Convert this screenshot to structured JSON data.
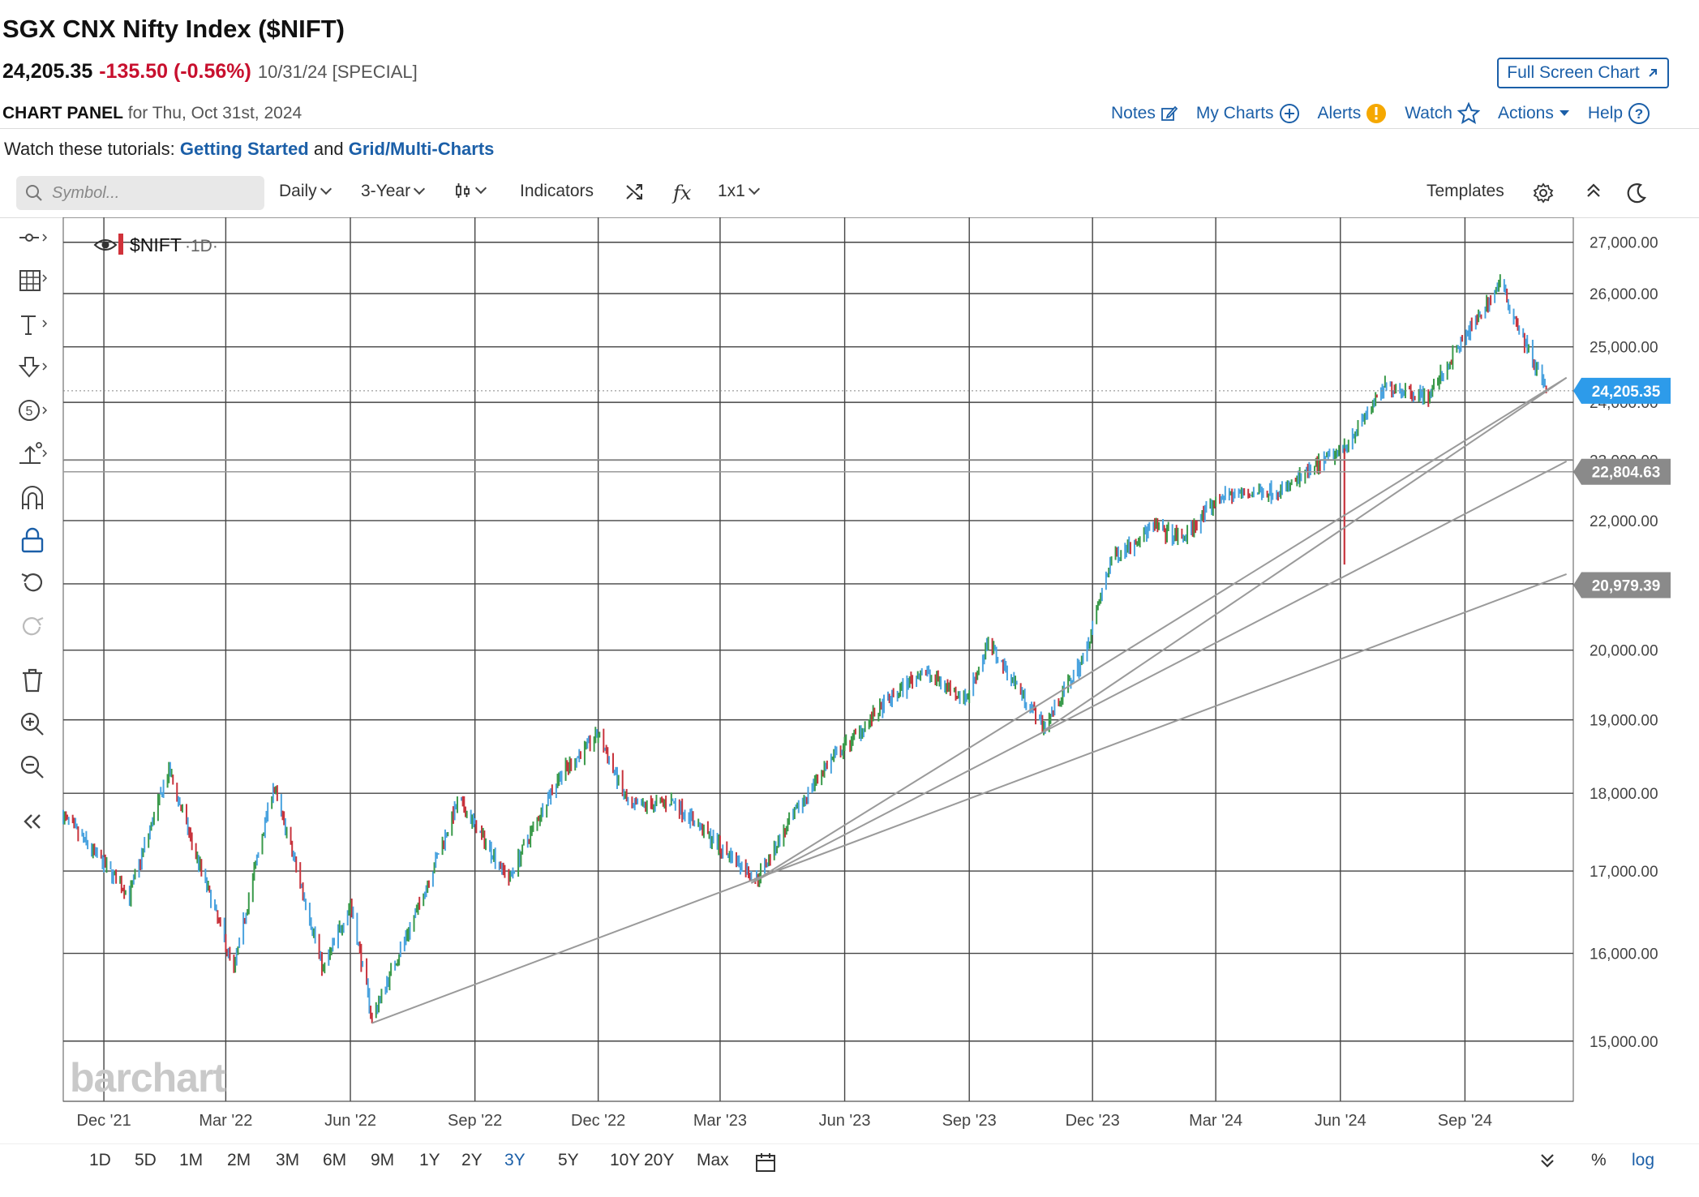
{
  "header": {
    "title": "SGX CNX Nifty Index ($NIFT)",
    "last": "24,205.35",
    "change": "-135.50 (-0.56%)",
    "date": "10/31/24 [SPECIAL]",
    "full_screen": "Full Screen Chart"
  },
  "panel": {
    "label": "CHART PANEL",
    "for_text": "for Thu, Oct 31st, 2024",
    "actions": [
      "Notes",
      "My Charts",
      "Alerts",
      "Watch",
      "Actions",
      "Help"
    ]
  },
  "tutorials": {
    "prefix": "Watch these tutorials:",
    "link1": "Getting Started",
    "and": "and",
    "link2": "Grid/Multi-Charts"
  },
  "toolbar": {
    "symbol_placeholder": "Symbol...",
    "interval": "Daily",
    "range": "3-Year",
    "indicators": "Indicators",
    "fx": "fx",
    "grid": "1x1",
    "templates": "Templates"
  },
  "legend": {
    "symbol": "$NIFT",
    "interval": "·1D·"
  },
  "watermark": "barchart",
  "chart_data": {
    "type": "ohlc",
    "symbol": "$NIFT",
    "x_tick_labels": [
      "Dec '21",
      "Mar '22",
      "Jun '22",
      "Sep '22",
      "Dec '22",
      "Mar '23",
      "Jun '23",
      "Sep '23",
      "Dec '23",
      "Mar '24",
      "Jun '24",
      "Sep '24"
    ],
    "y_tick_labels": [
      "15,000.00",
      "16,000.00",
      "17,000.00",
      "18,000.00",
      "19,000.00",
      "20,000.00",
      "21,000.00",
      "22,000.00",
      "23,000.00",
      "24,000.00",
      "25,000.00",
      "26,000.00",
      "27,000.00"
    ],
    "y_ticks": [
      15000,
      16000,
      17000,
      18000,
      19000,
      20000,
      21000,
      22000,
      23000,
      24000,
      25000,
      26000,
      27000
    ],
    "ylim": [
      14350,
      27500
    ],
    "xlim": [
      "2021-11-01",
      "2024-11-20"
    ],
    "log_scale": true,
    "price_tags": [
      {
        "value": 24205.35,
        "label": "24,205.35",
        "color": "#2d9bea"
      },
      {
        "value": 22804.63,
        "label": "22,804.63",
        "color": "#8a8a8a"
      },
      {
        "value": 20979.39,
        "label": "20,979.39",
        "color": "#8a8a8a"
      }
    ],
    "anchors": [
      {
        "d": "2021-11-01",
        "v": 17700
      },
      {
        "d": "2021-11-20",
        "v": 17300
      },
      {
        "d": "2021-12-20",
        "v": 16700
      },
      {
        "d": "2022-01-18",
        "v": 18300
      },
      {
        "d": "2022-02-05",
        "v": 17300
      },
      {
        "d": "2022-03-07",
        "v": 15800
      },
      {
        "d": "2022-04-05",
        "v": 18100
      },
      {
        "d": "2022-05-12",
        "v": 15800
      },
      {
        "d": "2022-06-01",
        "v": 16600
      },
      {
        "d": "2022-06-17",
        "v": 15250
      },
      {
        "d": "2022-07-20",
        "v": 16500
      },
      {
        "d": "2022-08-20",
        "v": 17900
      },
      {
        "d": "2022-09-26",
        "v": 16900
      },
      {
        "d": "2022-11-01",
        "v": 18200
      },
      {
        "d": "2022-12-01",
        "v": 18800
      },
      {
        "d": "2022-12-24",
        "v": 17800
      },
      {
        "d": "2023-01-25",
        "v": 17900
      },
      {
        "d": "2023-03-01",
        "v": 17300
      },
      {
        "d": "2023-03-28",
        "v": 16900
      },
      {
        "d": "2023-05-15",
        "v": 18300
      },
      {
        "d": "2023-06-30",
        "v": 19200
      },
      {
        "d": "2023-07-28",
        "v": 19700
      },
      {
        "d": "2023-08-30",
        "v": 19300
      },
      {
        "d": "2023-09-15",
        "v": 20100
      },
      {
        "d": "2023-10-26",
        "v": 18900
      },
      {
        "d": "2023-11-25",
        "v": 19900
      },
      {
        "d": "2023-12-15",
        "v": 21400
      },
      {
        "d": "2024-01-15",
        "v": 21900
      },
      {
        "d": "2024-02-05",
        "v": 21700
      },
      {
        "d": "2024-03-05",
        "v": 22400
      },
      {
        "d": "2024-04-20",
        "v": 22500
      },
      {
        "d": "2024-06-03",
        "v": 23200
      },
      {
        "d": "2024-07-05",
        "v": 24300
      },
      {
        "d": "2024-08-05",
        "v": 24100
      },
      {
        "d": "2024-09-27",
        "v": 26200
      },
      {
        "d": "2024-10-15",
        "v": 25100
      },
      {
        "d": "2024-10-31",
        "v": 24205
      }
    ],
    "special_bars": [
      {
        "d": "2024-06-04",
        "high": 23200,
        "low": 21300
      }
    ],
    "trendlines": [
      {
        "p1": {
          "d": "2022-06-17",
          "v": 15200
        },
        "p2": {
          "d": "2024-11-15",
          "v": 21150
        }
      },
      {
        "p1": {
          "d": "2023-03-24",
          "v": 16850
        },
        "p2": {
          "d": "2024-11-15",
          "v": 22980
        }
      },
      {
        "p1": {
          "d": "2023-03-24",
          "v": 16850
        },
        "p2": {
          "d": "2024-11-15",
          "v": 24440
        }
      },
      {
        "p1": {
          "d": "2023-10-26",
          "v": 18850
        },
        "p2": {
          "d": "2024-11-15",
          "v": 24440
        }
      }
    ],
    "hlines": [
      22804.63,
      23007.73
    ]
  },
  "range_buttons": [
    "1D",
    "5D",
    "1M",
    "2M",
    "3M",
    "6M",
    "9M",
    "1Y",
    "2Y",
    "3Y",
    "5Y",
    "10Y",
    "20Y",
    "Max"
  ],
  "active_range": "3Y",
  "scale_buttons": {
    "percent": "%",
    "log": "log"
  }
}
